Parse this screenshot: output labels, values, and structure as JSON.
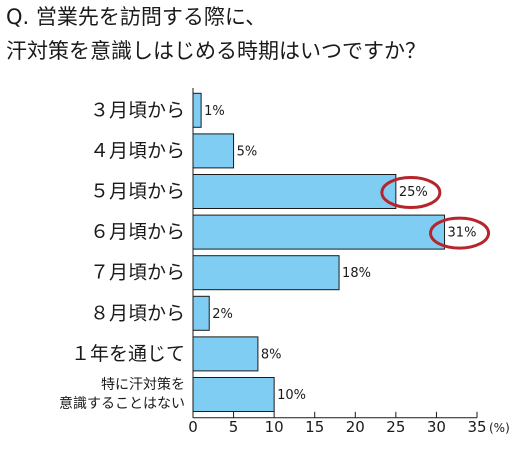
{
  "title_lines": [
    "Q. 営業先を訪問する際に、",
    "汗対策を意識しはじめる時期はいつですか？"
  ],
  "chart_data": {
    "type": "bar",
    "orientation": "horizontal",
    "categories": [
      [
        "３月頃から"
      ],
      [
        "４月頃から"
      ],
      [
        "５月頃から"
      ],
      [
        "６月頃から"
      ],
      [
        "７月頃から"
      ],
      [
        "８月頃から"
      ],
      [
        "１年を通じて"
      ],
      [
        "特に汗対策を",
        "意識することはない"
      ]
    ],
    "values": [
      1,
      5,
      25,
      31,
      18,
      2,
      8,
      10
    ],
    "value_labels": [
      "1%",
      "5%",
      "25%",
      "31%",
      "18%",
      "2%",
      "8%",
      "10%"
    ],
    "x_ticks": [
      "0",
      "5",
      "10",
      "15",
      "20",
      "25",
      "30",
      "35"
    ],
    "x_unit": "(%)",
    "xlim": [
      0,
      35
    ],
    "grid": false,
    "highlighted_categories": [
      2,
      3
    ],
    "colors": {
      "bar_fill": "#7fcdf3",
      "bar_stroke": "#1a1a1a",
      "highlight_ring": "#b5252b",
      "text": "#1a1a1a"
    }
  }
}
